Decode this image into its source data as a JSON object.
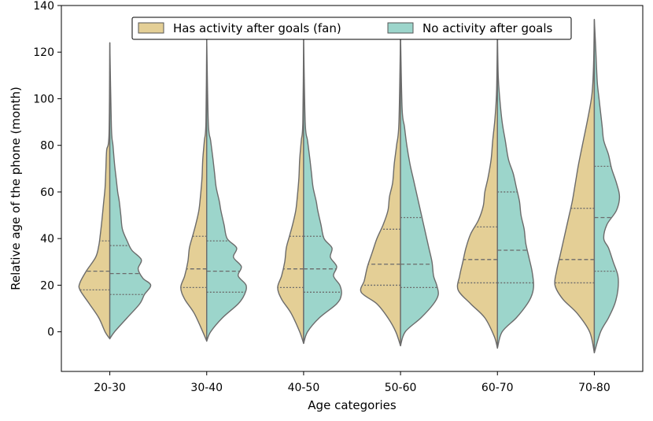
{
  "chart_data": {
    "type": "violin",
    "split": true,
    "title": "",
    "xlabel": "Age categories",
    "ylabel": "Relative age of the phone (month)",
    "ylim": [
      -17,
      140
    ],
    "yticks": [
      0,
      20,
      40,
      60,
      80,
      100,
      120,
      140
    ],
    "yticklabels": [
      "0",
      "20",
      "40",
      "60",
      "80",
      "100",
      "120",
      "140"
    ],
    "categories": [
      "20-30",
      "30-40",
      "40-50",
      "50-60",
      "60-70",
      "70-80"
    ],
    "legend_position": "top-center",
    "series": [
      {
        "name": "Has activity after goals (fan)",
        "side": "left",
        "color": "#E4CF96",
        "violins": [
          {
            "category": "20-30",
            "quartiles": [
              18,
              26,
              39
            ],
            "profile": [
              [
                -3,
                0
              ],
              [
                0,
                6
              ],
              [
                6,
                14
              ],
              [
                12,
                26
              ],
              [
                18,
                38
              ],
              [
                21,
                38
              ],
              [
                26,
                30
              ],
              [
                32,
                18
              ],
              [
                37,
                14
              ],
              [
                42,
                12
              ],
              [
                48,
                10
              ],
              [
                55,
                8
              ],
              [
                62,
                6
              ],
              [
                70,
                5
              ],
              [
                78,
                4
              ],
              [
                85,
                1
              ],
              [
                124,
                0
              ]
            ]
          },
          {
            "category": "30-40",
            "quartiles": [
              19,
              27,
              41
            ],
            "profile": [
              [
                -4,
                0
              ],
              [
                0,
                5
              ],
              [
                8,
                16
              ],
              [
                14,
                28
              ],
              [
                19,
                33
              ],
              [
                24,
                28
              ],
              [
                30,
                24
              ],
              [
                36,
                22
              ],
              [
                41,
                18
              ],
              [
                46,
                14
              ],
              [
                52,
                10
              ],
              [
                58,
                8
              ],
              [
                66,
                6
              ],
              [
                74,
                5
              ],
              [
                82,
                3
              ],
              [
                90,
                1
              ],
              [
                126,
                0
              ]
            ]
          },
          {
            "category": "40-50",
            "quartiles": [
              19,
              27,
              41
            ],
            "profile": [
              [
                -5,
                0
              ],
              [
                0,
                5
              ],
              [
                8,
                16
              ],
              [
                14,
                28
              ],
              [
                19,
                33
              ],
              [
                24,
                28
              ],
              [
                30,
                24
              ],
              [
                36,
                22
              ],
              [
                41,
                18
              ],
              [
                46,
                14
              ],
              [
                52,
                10
              ],
              [
                58,
                8
              ],
              [
                66,
                6
              ],
              [
                74,
                5
              ],
              [
                82,
                3
              ],
              [
                90,
                1
              ],
              [
                126,
                0
              ]
            ]
          },
          {
            "category": "50-60",
            "quartiles": [
              20,
              29,
              44
            ],
            "profile": [
              [
                -6,
                0
              ],
              [
                0,
                6
              ],
              [
                6,
                16
              ],
              [
                12,
                30
              ],
              [
                17,
                50
              ],
              [
                22,
                46
              ],
              [
                28,
                42
              ],
              [
                34,
                36
              ],
              [
                40,
                30
              ],
              [
                46,
                22
              ],
              [
                52,
                16
              ],
              [
                58,
                14
              ],
              [
                64,
                10
              ],
              [
                72,
                8
              ],
              [
                80,
                5
              ],
              [
                90,
                2
              ],
              [
                128,
                0
              ]
            ]
          },
          {
            "category": "60-70",
            "quartiles": [
              21,
              31,
              45
            ],
            "profile": [
              [
                -7,
                0
              ],
              [
                -2,
                4
              ],
              [
                6,
                16
              ],
              [
                12,
                34
              ],
              [
                18,
                50
              ],
              [
                24,
                48
              ],
              [
                30,
                44
              ],
              [
                36,
                40
              ],
              [
                42,
                34
              ],
              [
                48,
                24
              ],
              [
                54,
                18
              ],
              [
                60,
                16
              ],
              [
                66,
                12
              ],
              [
                74,
                8
              ],
              [
                82,
                6
              ],
              [
                92,
                3
              ],
              [
                104,
                1
              ],
              [
                129,
                0
              ]
            ]
          },
          {
            "category": "70-80",
            "quartiles": [
              21,
              31,
              53
            ],
            "profile": [
              [
                -9,
                0
              ],
              [
                0,
                6
              ],
              [
                8,
                22
              ],
              [
                14,
                40
              ],
              [
                20,
                50
              ],
              [
                26,
                48
              ],
              [
                32,
                44
              ],
              [
                38,
                40
              ],
              [
                44,
                36
              ],
              [
                50,
                32
              ],
              [
                56,
                28
              ],
              [
                64,
                24
              ],
              [
                72,
                20
              ],
              [
                82,
                14
              ],
              [
                92,
                8
              ],
              [
                102,
                3
              ],
              [
                114,
                1
              ],
              [
                134,
                0
              ]
            ]
          }
        ]
      },
      {
        "name": "No activity after goals",
        "side": "right",
        "color": "#9CD5CB",
        "violins": [
          {
            "category": "20-30",
            "quartiles": [
              16,
              25,
              37
            ],
            "profile": [
              [
                -3,
                0
              ],
              [
                0,
                6
              ],
              [
                6,
                22
              ],
              [
                12,
                38
              ],
              [
                16,
                44
              ],
              [
                20,
                52
              ],
              [
                23,
                42
              ],
              [
                27,
                36
              ],
              [
                31,
                40
              ],
              [
                35,
                28
              ],
              [
                39,
                22
              ],
              [
                44,
                16
              ],
              [
                50,
                14
              ],
              [
                56,
                12
              ],
              [
                60,
                10
              ],
              [
                66,
                8
              ],
              [
                72,
                6
              ],
              [
                80,
                4
              ],
              [
                88,
                2
              ],
              [
                124,
                0
              ]
            ]
          },
          {
            "category": "30-40",
            "quartiles": [
              17,
              26,
              39
            ],
            "profile": [
              [
                -4,
                0
              ],
              [
                0,
                5
              ],
              [
                6,
                20
              ],
              [
                12,
                40
              ],
              [
                16,
                48
              ],
              [
                20,
                50
              ],
              [
                24,
                40
              ],
              [
                28,
                44
              ],
              [
                32,
                34
              ],
              [
                36,
                38
              ],
              [
                40,
                26
              ],
              [
                46,
                22
              ],
              [
                52,
                18
              ],
              [
                56,
                16
              ],
              [
                62,
                12
              ],
              [
                68,
                10
              ],
              [
                74,
                8
              ],
              [
                82,
                5
              ],
              [
                90,
                2
              ],
              [
                126,
                0
              ]
            ]
          },
          {
            "category": "40-50",
            "quartiles": [
              17,
              27,
              41
            ],
            "profile": [
              [
                -5,
                0
              ],
              [
                0,
                5
              ],
              [
                6,
                20
              ],
              [
                12,
                42
              ],
              [
                16,
                48
              ],
              [
                20,
                46
              ],
              [
                24,
                38
              ],
              [
                28,
                42
              ],
              [
                32,
                34
              ],
              [
                36,
                36
              ],
              [
                40,
                26
              ],
              [
                46,
                22
              ],
              [
                52,
                18
              ],
              [
                56,
                16
              ],
              [
                62,
                12
              ],
              [
                68,
                10
              ],
              [
                74,
                8
              ],
              [
                82,
                5
              ],
              [
                90,
                2
              ],
              [
                126,
                0
              ]
            ]
          },
          {
            "category": "50-60",
            "quartiles": [
              19,
              29,
              49
            ],
            "profile": [
              [
                -6,
                0
              ],
              [
                0,
                6
              ],
              [
                6,
                26
              ],
              [
                12,
                42
              ],
              [
                16,
                48
              ],
              [
                20,
                46
              ],
              [
                24,
                42
              ],
              [
                30,
                40
              ],
              [
                36,
                36
              ],
              [
                42,
                32
              ],
              [
                48,
                28
              ],
              [
                54,
                24
              ],
              [
                60,
                20
              ],
              [
                66,
                16
              ],
              [
                72,
                12
              ],
              [
                80,
                8
              ],
              [
                88,
                5
              ],
              [
                96,
                2
              ],
              [
                128,
                0
              ]
            ]
          },
          {
            "category": "60-70",
            "quartiles": [
              21,
              35,
              60
            ],
            "profile": [
              [
                -7,
                0
              ],
              [
                0,
                6
              ],
              [
                6,
                24
              ],
              [
                12,
                38
              ],
              [
                16,
                44
              ],
              [
                20,
                46
              ],
              [
                26,
                44
              ],
              [
                32,
                40
              ],
              [
                38,
                36
              ],
              [
                44,
                34
              ],
              [
                50,
                30
              ],
              [
                56,
                28
              ],
              [
                62,
                24
              ],
              [
                68,
                20
              ],
              [
                74,
                14
              ],
              [
                82,
                10
              ],
              [
                90,
                6
              ],
              [
                100,
                3
              ],
              [
                110,
                1
              ],
              [
                129,
                0
              ]
            ]
          },
          {
            "category": "70-80",
            "quartiles": [
              26,
              49,
              71
            ],
            "profile": [
              [
                -9,
                0
              ],
              [
                0,
                8
              ],
              [
                6,
                18
              ],
              [
                12,
                26
              ],
              [
                18,
                30
              ],
              [
                24,
                30
              ],
              [
                30,
                24
              ],
              [
                36,
                18
              ],
              [
                40,
                12
              ],
              [
                46,
                16
              ],
              [
                52,
                28
              ],
              [
                58,
                32
              ],
              [
                64,
                28
              ],
              [
                70,
                22
              ],
              [
                76,
                18
              ],
              [
                82,
                12
              ],
              [
                88,
                10
              ],
              [
                94,
                8
              ],
              [
                100,
                6
              ],
              [
                106,
                4
              ],
              [
                112,
                3
              ],
              [
                120,
                2
              ],
              [
                134,
                0
              ]
            ]
          }
        ]
      }
    ]
  }
}
